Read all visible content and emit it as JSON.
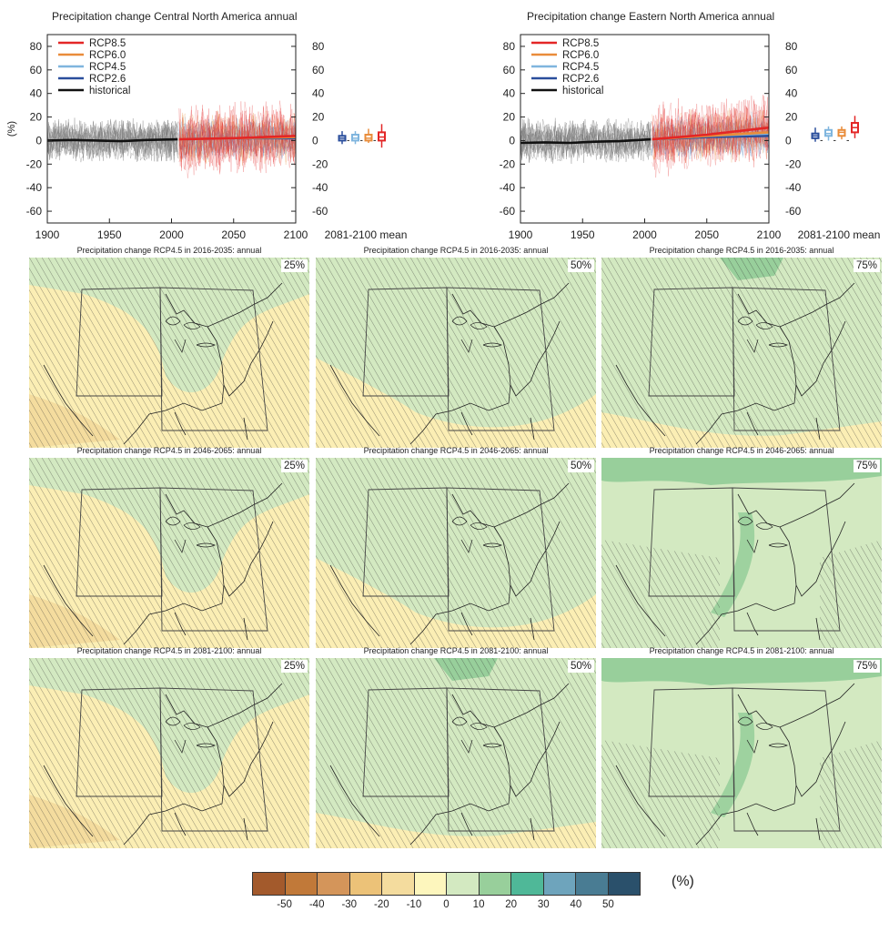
{
  "chart_data": [
    {
      "type": "line",
      "title": "Precipitation change Central North America annual",
      "ylabel": "(%)",
      "xlim": [
        1900,
        2100
      ],
      "ylim": [
        -70,
        90
      ],
      "xticks": [
        "1900",
        "1950",
        "2000",
        "2050",
        "2100"
      ],
      "yticks": [
        "80",
        "60",
        "40",
        "20",
        "0",
        "-20",
        "-40",
        "-60"
      ],
      "legend": {
        "placement": "top-left",
        "entries": [
          "RCP8.5",
          "RCP6.0",
          "RCP4.5",
          "RCP2.6",
          "historical"
        ]
      },
      "series": [
        {
          "name": "historical",
          "x": [
            1900,
            1920,
            1940,
            1960,
            1980,
            2005
          ],
          "values": [
            0,
            0.5,
            0,
            -0.5,
            0.5,
            1
          ]
        },
        {
          "name": "RCP2.6",
          "x": [
            2006,
            2050,
            2100
          ],
          "values": [
            1,
            2,
            2
          ]
        },
        {
          "name": "RCP4.5",
          "x": [
            2006,
            2050,
            2100
          ],
          "values": [
            1,
            2,
            3
          ]
        },
        {
          "name": "RCP6.0",
          "x": [
            2006,
            2050,
            2100
          ],
          "values": [
            1,
            2,
            3
          ]
        },
        {
          "name": "RCP8.5",
          "x": [
            2006,
            2050,
            2100
          ],
          "values": [
            1,
            2,
            4
          ]
        }
      ],
      "boxplot_label": "2081-2100 mean",
      "boxplots": [
        {
          "name": "RCP2.6",
          "min": -3,
          "q1": 0,
          "median": 2,
          "q3": 4,
          "max": 8
        },
        {
          "name": "RCP4.5",
          "min": -3,
          "q1": 0,
          "median": 2,
          "q3": 5,
          "max": 8
        },
        {
          "name": "RCP6.0",
          "min": -2,
          "q1": 0,
          "median": 2,
          "q3": 5,
          "max": 10
        },
        {
          "name": "RCP8.5",
          "min": -6,
          "q1": 0,
          "median": 3,
          "q3": 7,
          "max": 14
        }
      ]
    },
    {
      "type": "line",
      "title": "Precipitation change Eastern North America annual",
      "ylabel": "",
      "xlim": [
        1900,
        2100
      ],
      "ylim": [
        -70,
        90
      ],
      "xticks": [
        "1900",
        "1950",
        "2000",
        "2050",
        "2100"
      ],
      "yticks": [
        "80",
        "60",
        "40",
        "20",
        "0",
        "-20",
        "-40",
        "-60"
      ],
      "legend": {
        "placement": "top-left",
        "entries": [
          "RCP8.5",
          "RCP6.0",
          "RCP4.5",
          "RCP2.6",
          "historical"
        ]
      },
      "series": [
        {
          "name": "historical",
          "x": [
            1900,
            1920,
            1940,
            1960,
            1980,
            2005
          ],
          "values": [
            -2,
            -1.5,
            -2,
            -1,
            -0.5,
            1
          ]
        },
        {
          "name": "RCP2.6",
          "x": [
            2006,
            2050,
            2100
          ],
          "values": [
            1,
            3,
            4
          ]
        },
        {
          "name": "RCP4.5",
          "x": [
            2006,
            2050,
            2100
          ],
          "values": [
            1,
            4,
            6
          ]
        },
        {
          "name": "RCP6.0",
          "x": [
            2006,
            2050,
            2100
          ],
          "values": [
            1,
            4,
            7
          ]
        },
        {
          "name": "RCP8.5",
          "x": [
            2006,
            2050,
            2100
          ],
          "values": [
            1,
            5,
            11
          ]
        }
      ],
      "boxplot_label": "2081-2100 mean",
      "boxplots": [
        {
          "name": "RCP2.6",
          "min": -1,
          "q1": 2,
          "median": 4,
          "q3": 6,
          "max": 11
        },
        {
          "name": "RCP4.5",
          "min": 0,
          "q1": 4,
          "median": 6,
          "q3": 9,
          "max": 12
        },
        {
          "name": "RCP6.0",
          "min": 1,
          "q1": 4,
          "median": 7,
          "q3": 9,
          "max": 12
        },
        {
          "name": "RCP8.5",
          "min": 2,
          "q1": 7,
          "median": 11,
          "q3": 15,
          "max": 21
        }
      ]
    },
    {
      "type": "heatmap",
      "panels": [
        {
          "title": "Precipitation change RCP4.5 in 2016-2035: annual",
          "percentile": "25%",
          "mean_change": -5
        },
        {
          "title": "Precipitation change RCP4.5 in 2016-2035: annual",
          "percentile": "50%",
          "mean_change": 0
        },
        {
          "title": "Precipitation change RCP4.5 in 2016-2035: annual",
          "percentile": "75%",
          "mean_change": 5
        },
        {
          "title": "Precipitation change RCP4.5 in 2046-2065: annual",
          "percentile": "25%",
          "mean_change": -5
        },
        {
          "title": "Precipitation change RCP4.5 in 2046-2065: annual",
          "percentile": "50%",
          "mean_change": 0
        },
        {
          "title": "Precipitation change RCP4.5 in 2046-2065: annual",
          "percentile": "75%",
          "mean_change": 10
        },
        {
          "title": "Precipitation change RCP4.5 in 2081-2100: annual",
          "percentile": "25%",
          "mean_change": -5
        },
        {
          "title": "Precipitation change RCP4.5 in 2081-2100: annual",
          "percentile": "50%",
          "mean_change": 5
        },
        {
          "title": "Precipitation change RCP4.5 in 2081-2100: annual",
          "percentile": "75%",
          "mean_change": 10
        }
      ],
      "colorbar": {
        "unit": "(%)",
        "ticks": [
          "-50",
          "-40",
          "-30",
          "-20",
          "-10",
          "0",
          "10",
          "20",
          "30",
          "40",
          "50"
        ],
        "colors": [
          "#a35a2c",
          "#c17939",
          "#d4955a",
          "#ecc278",
          "#f4dc9e",
          "#fdf6bd",
          "#d3e9c1",
          "#98cf9b",
          "#4fb898",
          "#6ea4bc",
          "#497c93",
          "#2a506b"
        ]
      }
    }
  ],
  "colors": {
    "RCP8.5": "#e32626",
    "RCP6.0": "#e98c3a",
    "RCP4.5": "#7fb5de",
    "RCP2.6": "#2a4e9c",
    "historical": "#111111",
    "historical_spread": "#7a7a7a",
    "land_dry": "#fbeeb4",
    "land_drier": "#f4dc9e",
    "land_wet": "#d3e9c1",
    "land_wetter": "#98cf9b"
  }
}
